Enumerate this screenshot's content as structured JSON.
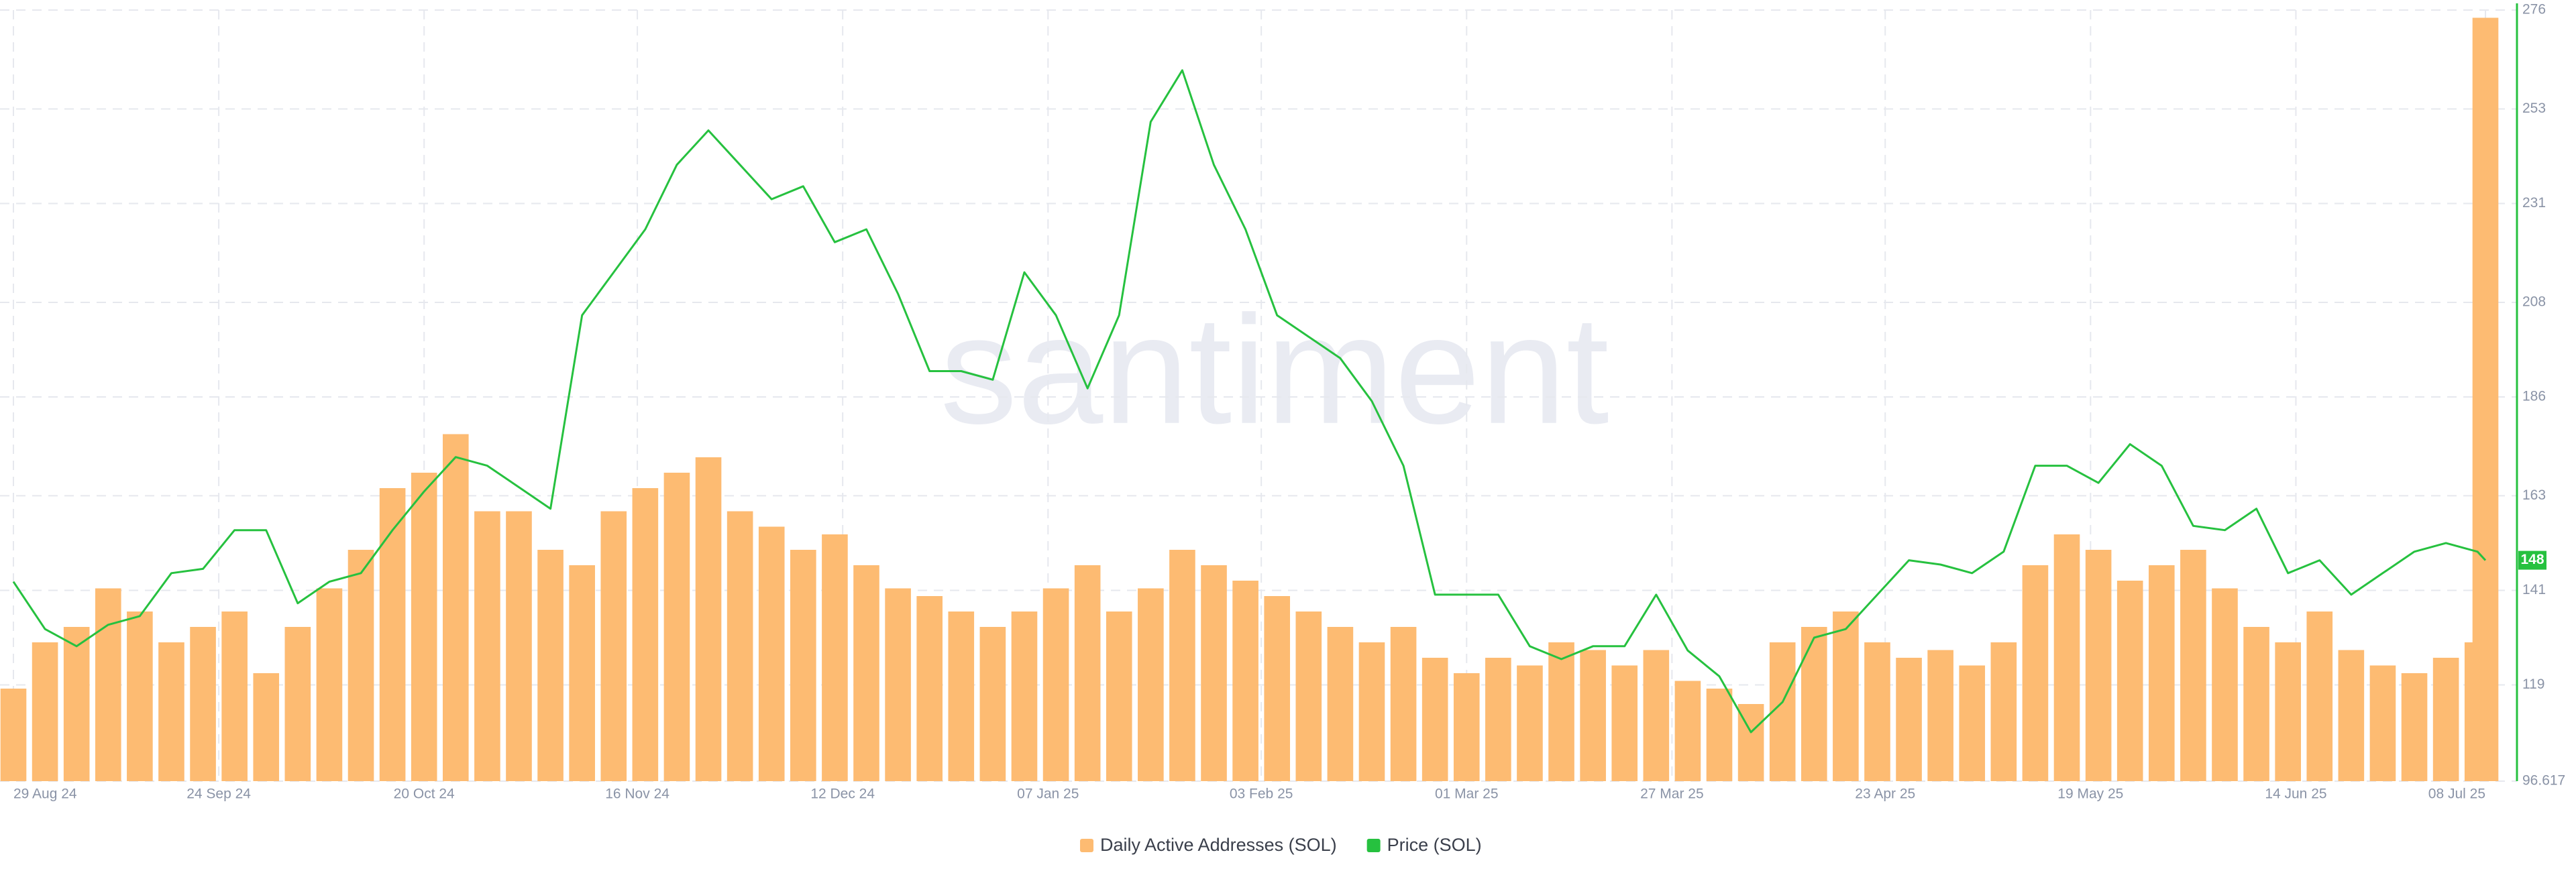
{
  "chart_data": {
    "type": "combo",
    "watermark": "santiment",
    "x": [
      "2024-08-29",
      "2024-09-02",
      "2024-09-06",
      "2024-09-10",
      "2024-09-14",
      "2024-09-18",
      "2024-09-22",
      "2024-09-26",
      "2024-09-30",
      "2024-10-04",
      "2024-10-08",
      "2024-10-12",
      "2024-10-16",
      "2024-10-20",
      "2024-10-24",
      "2024-10-28",
      "2024-11-01",
      "2024-11-05",
      "2024-11-09",
      "2024-11-13",
      "2024-11-17",
      "2024-11-21",
      "2024-11-25",
      "2024-11-29",
      "2024-12-03",
      "2024-12-07",
      "2024-12-11",
      "2024-12-15",
      "2024-12-19",
      "2024-12-23",
      "2024-12-27",
      "2024-12-31",
      "2025-01-04",
      "2025-01-08",
      "2025-01-12",
      "2025-01-16",
      "2025-01-20",
      "2025-01-24",
      "2025-01-28",
      "2025-02-01",
      "2025-02-05",
      "2025-02-09",
      "2025-02-13",
      "2025-02-17",
      "2025-02-21",
      "2025-02-25",
      "2025-03-01",
      "2025-03-05",
      "2025-03-09",
      "2025-03-13",
      "2025-03-17",
      "2025-03-21",
      "2025-03-25",
      "2025-03-29",
      "2025-04-02",
      "2025-04-06",
      "2025-04-10",
      "2025-04-14",
      "2025-04-18",
      "2025-04-22",
      "2025-04-26",
      "2025-04-30",
      "2025-05-04",
      "2025-05-08",
      "2025-05-12",
      "2025-05-16",
      "2025-05-20",
      "2025-05-24",
      "2025-05-28",
      "2025-06-01",
      "2025-06-05",
      "2025-06-09",
      "2025-06-13",
      "2025-06-17",
      "2025-06-21",
      "2025-06-25",
      "2025-06-29",
      "2025-07-03",
      "2025-07-07",
      "2025-07-08"
    ],
    "xlim": [
      "2024-08-29",
      "2025-07-08"
    ],
    "xticks": [
      {
        "value": "2024-08-29",
        "label": "29 Aug 24"
      },
      {
        "value": "2024-09-24",
        "label": "24 Sep 24"
      },
      {
        "value": "2024-10-20",
        "label": "20 Oct 24"
      },
      {
        "value": "2024-11-16",
        "label": "16 Nov 24"
      },
      {
        "value": "2024-12-12",
        "label": "12 Dec 24"
      },
      {
        "value": "2025-01-07",
        "label": "07 Jan 25"
      },
      {
        "value": "2025-02-03",
        "label": "03 Feb 25"
      },
      {
        "value": "2025-03-01",
        "label": "01 Mar 25"
      },
      {
        "value": "2025-03-27",
        "label": "27 Mar 25"
      },
      {
        "value": "2025-04-23",
        "label": "23 Apr 25"
      },
      {
        "value": "2025-05-19",
        "label": "19 May 25"
      },
      {
        "value": "2025-06-14",
        "label": "14 Jun 25"
      },
      {
        "value": "2025-07-08",
        "label": "08 Jul 25"
      }
    ],
    "ylim": [
      0,
      100
    ],
    "y2lim": [
      96.617,
      276
    ],
    "y2ticks": [
      96.617,
      119,
      141,
      163,
      186,
      208,
      231,
      253,
      276
    ],
    "grid": true,
    "legend": "bottom",
    "series": [
      {
        "name": "Daily Active Addresses (SOL)",
        "type": "bar",
        "color": "#fdbb72",
        "values": [
          12,
          18,
          20,
          25,
          22,
          18,
          20,
          22,
          14,
          20,
          25,
          30,
          38,
          40,
          45,
          35,
          35,
          30,
          28,
          35,
          38,
          40,
          42,
          35,
          33,
          30,
          32,
          28,
          25,
          24,
          22,
          20,
          22,
          25,
          28,
          22,
          25,
          30,
          28,
          26,
          24,
          22,
          20,
          18,
          20,
          16,
          14,
          16,
          15,
          18,
          17,
          15,
          17,
          13,
          12,
          10,
          18,
          20,
          22,
          18,
          16,
          17,
          15,
          18,
          28,
          32,
          30,
          26,
          28,
          30,
          25,
          20,
          18,
          22,
          17,
          15,
          14,
          16,
          18,
          99
        ]
      },
      {
        "name": "Price (SOL)",
        "type": "line",
        "axis": "y2",
        "color": "#26c13f",
        "values": [
          143,
          132,
          128,
          133,
          135,
          145,
          146,
          155,
          155,
          138,
          143,
          145,
          155,
          164,
          172,
          170,
          165,
          160,
          205,
          215,
          225,
          240,
          248,
          240,
          232,
          235,
          222,
          225,
          210,
          192,
          192,
          190,
          215,
          205,
          188,
          205,
          250,
          262,
          240,
          225,
          205,
          200,
          195,
          185,
          170,
          140,
          140,
          140,
          128,
          125,
          128,
          128,
          140,
          127,
          121,
          108,
          115,
          130,
          132,
          140,
          148,
          147,
          145,
          150,
          170,
          170,
          166,
          175,
          170,
          156,
          155,
          160,
          145,
          148,
          140,
          145,
          150,
          152,
          150,
          148
        ]
      }
    ]
  }
}
